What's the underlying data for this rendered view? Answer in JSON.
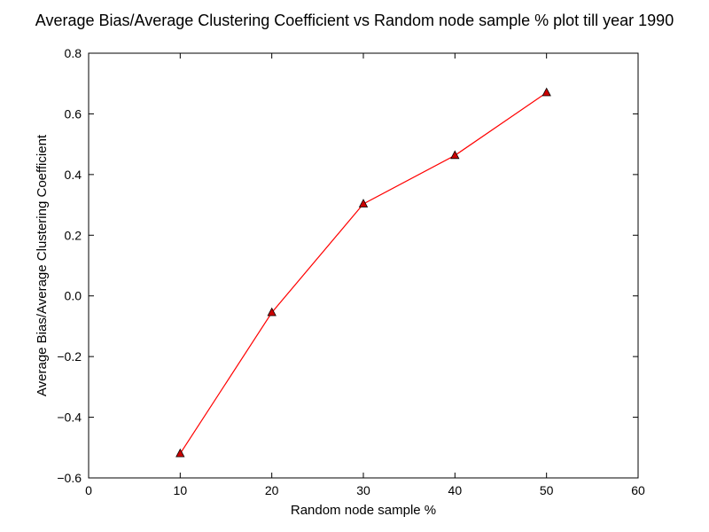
{
  "chart_data": {
    "type": "line",
    "title": "Average Bias/Average Clustering Coefficient vs Random node sample % plot till year 1990",
    "xlabel": "Random node sample %",
    "ylabel": "Average Bias/Average Clustering Coefficient",
    "xlim": [
      0,
      60
    ],
    "ylim": [
      -0.6,
      0.8
    ],
    "xticks": [
      0,
      10,
      20,
      30,
      40,
      50,
      60
    ],
    "xtick_labels": [
      "0",
      "10",
      "20",
      "30",
      "40",
      "50",
      "60"
    ],
    "yticks": [
      -0.6,
      -0.4,
      -0.2,
      0.0,
      0.2,
      0.4,
      0.6,
      0.8
    ],
    "ytick_labels": [
      "−0.6",
      "−0.4",
      "−0.2",
      "0.0",
      "0.2",
      "0.4",
      "0.6",
      "0.8"
    ],
    "grid": false,
    "legend": "none",
    "series": [
      {
        "x": [
          10,
          20,
          30,
          40,
          50
        ],
        "y": [
          -0.52,
          -0.055,
          0.303,
          0.463,
          0.67
        ],
        "line_color": "#ff0000",
        "marker": "triangle-up",
        "marker_color": "#cc0000"
      }
    ]
  }
}
